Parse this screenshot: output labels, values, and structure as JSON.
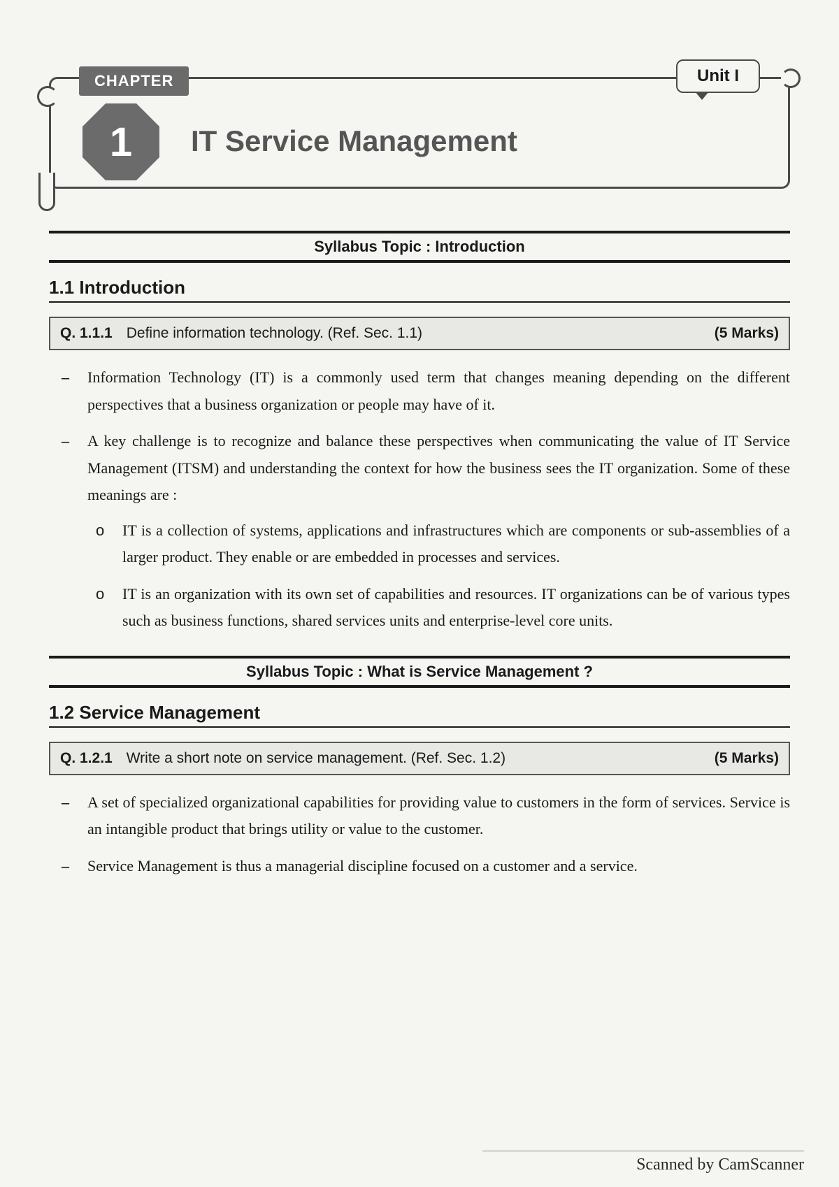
{
  "header": {
    "chapter_label": "CHAPTER",
    "chapter_number": "1",
    "unit_label": "Unit I",
    "title": "IT Service Management"
  },
  "syllabus": {
    "topic1": "Syllabus Topic : Introduction",
    "topic2": "Syllabus Topic : What is Service Management ?"
  },
  "sections": {
    "s1": {
      "heading": "1.1  Introduction",
      "question": {
        "num": "Q. 1.1.1",
        "text": "Define information technology. (Ref. Sec. 1.1)",
        "marks": "(5 Marks)"
      },
      "bullets": [
        "Information Technology (IT) is a commonly used term that changes meaning depending on the different perspectives that a business organization or people may have of it.",
        "A key challenge is to recognize and balance these perspectives when communicating the value of IT Service Management (ITSM) and understanding the context for how the business sees the IT organization. Some of these meanings are :"
      ],
      "sub_bullets": [
        "IT is a collection of systems, applications and infrastructures which are components or sub-assemblies of a larger product. They enable or are embedded in processes and services.",
        "IT is an organization with its own set of capabilities and resources. IT organizations can be of various types such as business functions, shared services units and enterprise-level core units."
      ]
    },
    "s2": {
      "heading": "1.2  Service Management",
      "question": {
        "num": "Q. 1.2.1",
        "text": "Write a short note on service management. (Ref. Sec. 1.2)",
        "marks": "(5 Marks)"
      },
      "bullets": [
        "A set of specialized organizational capabilities for providing value to customers in the form of services. Service is an intangible product that brings utility or value to the customer.",
        "Service Management is thus a managerial discipline focused on a customer and a service."
      ]
    }
  },
  "footer": {
    "scan_text": "Scanned by CamScanner"
  },
  "colors": {
    "page_bg": "#f5f5f2",
    "ink": "#1a1a1a",
    "tab_bg": "#6b6b6b",
    "box_bg": "#e8e8e5",
    "title_gray": "#555555"
  }
}
